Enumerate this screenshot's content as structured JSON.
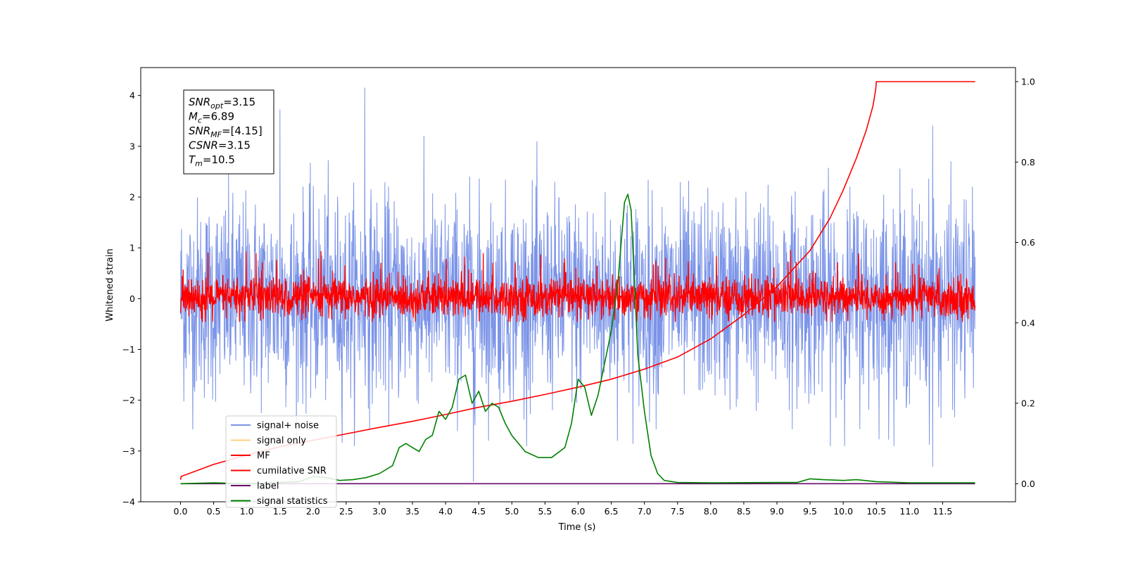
{
  "chart_data": {
    "type": "line",
    "xlabel": "Time (s)",
    "ylabel": "Whitened strain",
    "xlim": [
      -0.6,
      12.6
    ],
    "ylim": [
      -4,
      4.55
    ],
    "ylim_right": [
      -0.045,
      1.035
    ],
    "x_ticks": [
      0.0,
      0.5,
      1.0,
      1.5,
      2.0,
      2.5,
      3.0,
      3.5,
      4.0,
      4.5,
      5.0,
      5.5,
      6.0,
      6.5,
      7.0,
      7.5,
      8.0,
      8.5,
      9.0,
      9.5,
      10.0,
      10.5,
      11.0,
      11.5
    ],
    "x_tick_labels": [
      "0.0",
      "0.5",
      "1.0",
      "1.5",
      "2.0",
      "2.5",
      "3.0",
      "3.5",
      "4.0",
      "4.5",
      "5.0",
      "5.5",
      "6.0",
      "6.5",
      "7.0",
      "7.5",
      "8.0",
      "8.5",
      "9.0",
      "9.5",
      "10.0",
      "10.5",
      "11.0",
      "11.5"
    ],
    "y_ticks": [
      -4,
      -3,
      -2,
      -1,
      0,
      1,
      2,
      3,
      4
    ],
    "y_tick_labels": [
      "−4",
      "−3",
      "−2",
      "−1",
      "0",
      "1",
      "2",
      "3",
      "4"
    ],
    "y_right_ticks": [
      0.0,
      0.2,
      0.4,
      0.6,
      0.8,
      1.0
    ],
    "y_right_tick_labels": [
      "0.0",
      "0.2",
      "0.4",
      "0.6",
      "0.8",
      "1.0"
    ],
    "annotation": {
      "lines": [
        {
          "main": "SNR",
          "sub": "opt",
          "rest": "=3.15"
        },
        {
          "main": "M",
          "sub": "c",
          "rest": "=6.89"
        },
        {
          "main": "SNR",
          "sub": "MF",
          "rest": "=[4.15]"
        },
        {
          "main": "CSNR",
          "sub": "",
          "rest": "=3.15"
        },
        {
          "main": "T",
          "sub": "m",
          "rest": "=10.5"
        }
      ]
    },
    "legend": {
      "location": "lower left",
      "entries": [
        {
          "label": "signal+ noise",
          "color": "#7b94e8"
        },
        {
          "label": "signal only",
          "color": "#ffd27f"
        },
        {
          "label": "MF",
          "color": "#ff0000"
        },
        {
          "label": "cumilative SNR",
          "color": "#ff0000"
        },
        {
          "label": "label",
          "color": "#6a0a6a"
        },
        {
          "label": "signal statistics",
          "color": "#008000"
        }
      ]
    },
    "series": [
      {
        "name": "signal+ noise",
        "axis": "left",
        "color": "#7b94e8",
        "style": "dense noise",
        "x_range": [
          0.0,
          11.99
        ],
        "y_range_approx": [
          -3.6,
          4.15
        ],
        "notable_peaks": [
          [
            2.78,
            4.15
          ],
          [
            1.5,
            3.72
          ],
          [
            11.35,
            3.4
          ],
          [
            4.42,
            -3.6
          ],
          [
            11.35,
            -3.3
          ]
        ]
      },
      {
        "name": "MF",
        "axis": "left",
        "color": "#ff0000",
        "style": "dense noise",
        "x_range": [
          0.0,
          11.99
        ],
        "y_range_approx": [
          -0.45,
          0.95
        ]
      },
      {
        "name": "cumilative SNR",
        "axis": "right",
        "color": "#ff0000",
        "x": [
          0.0,
          0.01,
          0.5,
          1.0,
          1.5,
          2.0,
          2.5,
          3.0,
          3.5,
          4.0,
          4.5,
          5.0,
          5.5,
          6.0,
          6.5,
          7.0,
          7.5,
          8.0,
          8.5,
          9.0,
          9.5,
          9.8,
          10.0,
          10.2,
          10.35,
          10.45,
          10.49,
          10.5,
          11.0,
          11.5,
          11.99
        ],
        "values": [
          0.01,
          0.018,
          0.048,
          0.071,
          0.092,
          0.108,
          0.124,
          0.14,
          0.155,
          0.172,
          0.19,
          0.205,
          0.222,
          0.24,
          0.26,
          0.285,
          0.315,
          0.36,
          0.42,
          0.49,
          0.58,
          0.66,
          0.73,
          0.81,
          0.88,
          0.94,
          0.98,
          1.0,
          1.0,
          1.0,
          1.0
        ]
      },
      {
        "name": "label",
        "axis": "right",
        "color": "#6a0a6a",
        "x": [
          0.0,
          11.99
        ],
        "values": [
          0.0,
          0.0
        ]
      },
      {
        "name": "signal statistics",
        "axis": "right",
        "color": "#008000",
        "x": [
          0.0,
          0.5,
          1.0,
          1.5,
          1.8,
          2.0,
          2.2,
          2.4,
          2.6,
          2.8,
          3.0,
          3.2,
          3.3,
          3.4,
          3.5,
          3.6,
          3.7,
          3.8,
          3.9,
          4.0,
          4.1,
          4.2,
          4.3,
          4.4,
          4.5,
          4.6,
          4.7,
          4.8,
          4.9,
          5.0,
          5.2,
          5.4,
          5.6,
          5.8,
          5.9,
          6.0,
          6.1,
          6.2,
          6.3,
          6.4,
          6.5,
          6.6,
          6.7,
          6.75,
          6.8,
          6.9,
          7.0,
          7.1,
          7.2,
          7.3,
          7.5,
          8.0,
          9.0,
          9.3,
          9.5,
          9.7,
          10.0,
          10.2,
          10.5,
          11.0,
          11.99
        ],
        "values": [
          0.0,
          0.002,
          0.0,
          0.003,
          0.005,
          0.018,
          0.015,
          0.008,
          0.01,
          0.015,
          0.025,
          0.045,
          0.09,
          0.1,
          0.09,
          0.08,
          0.11,
          0.12,
          0.18,
          0.16,
          0.19,
          0.26,
          0.27,
          0.2,
          0.23,
          0.18,
          0.2,
          0.19,
          0.15,
          0.12,
          0.08,
          0.065,
          0.065,
          0.09,
          0.15,
          0.26,
          0.24,
          0.17,
          0.22,
          0.3,
          0.38,
          0.5,
          0.7,
          0.72,
          0.68,
          0.32,
          0.18,
          0.07,
          0.025,
          0.008,
          0.003,
          0.002,
          0.003,
          0.003,
          0.012,
          0.01,
          0.008,
          0.01,
          0.005,
          0.002,
          0.002
        ]
      }
    ]
  }
}
